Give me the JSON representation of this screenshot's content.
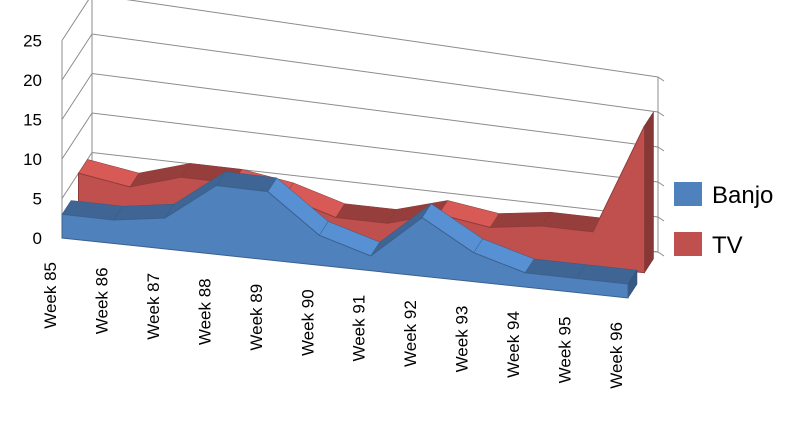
{
  "chart_data": {
    "type": "area",
    "view": "3d",
    "categories": [
      "Week 85",
      "Week 86",
      "Week 87",
      "Week 88",
      "Week 89",
      "Week 90",
      "Week 91",
      "Week 92",
      "Week 93",
      "Week 94",
      "Week 95",
      "Week 96"
    ],
    "series": [
      {
        "name": "Banjo",
        "color": "#4f81bd",
        "values": [
          3,
          3,
          4,
          9,
          9,
          4,
          2,
          8,
          4,
          2,
          2,
          2
        ]
      },
      {
        "name": "TV",
        "color": "#c0504d",
        "values": [
          5,
          4,
          6,
          6,
          5,
          3,
          3,
          5,
          4,
          5,
          5,
          21
        ]
      }
    ],
    "y_ticks": [
      "0",
      "5",
      "10",
      "15",
      "20",
      "25"
    ],
    "ylim": [
      0,
      25
    ],
    "legend": "right",
    "grid": true
  }
}
